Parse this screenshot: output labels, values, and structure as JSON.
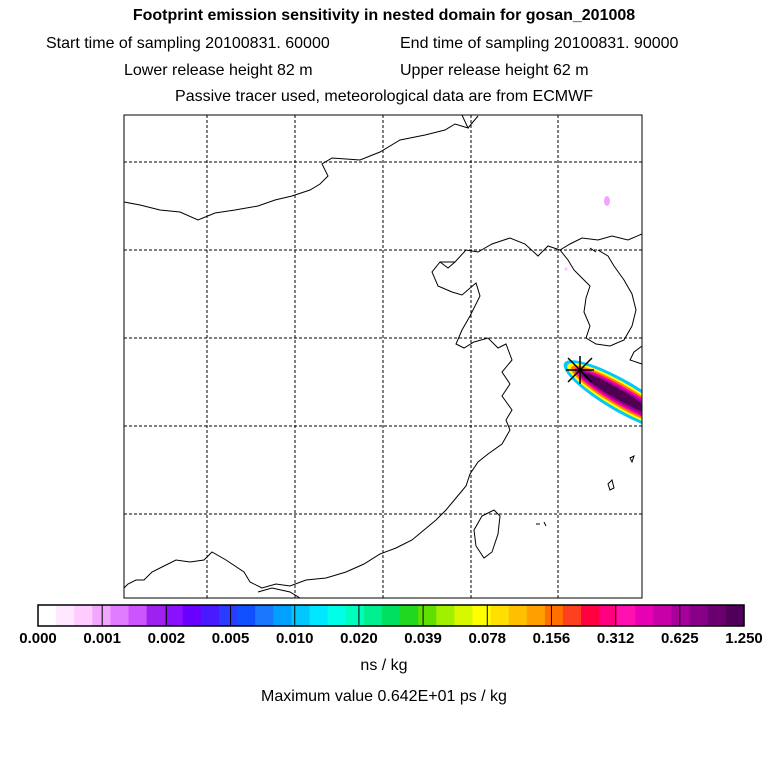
{
  "header": {
    "title": "Footprint emission sensitivity in nested domain for gosan_201008",
    "start_time": "Start time of sampling 20100831. 60000",
    "end_time": "End time of sampling 20100831. 90000",
    "lower_release": "Lower release height   82 m",
    "upper_release": "Upper release height   62 m",
    "tracer_note": "Passive tracer used, meteorological data are from ECMWF"
  },
  "colorbar": {
    "tick_labels": [
      "0.000",
      "0.001",
      "0.002",
      "0.005",
      "0.010",
      "0.020",
      "0.039",
      "0.078",
      "0.156",
      "0.312",
      "0.625",
      "1.250"
    ],
    "colors": [
      "#ffffff",
      "#ffe8ff",
      "#ffccff",
      "#f3a6ff",
      "#e07cff",
      "#cc55ff",
      "#a020f0",
      "#8a10ff",
      "#6a00ff",
      "#4a1aff",
      "#2a3cff",
      "#1050ff",
      "#1a78ff",
      "#00a0ff",
      "#00c8ff",
      "#00e8ff",
      "#00ffe6",
      "#00ffbe",
      "#00f090",
      "#00e060",
      "#20d820",
      "#60e000",
      "#a0f000",
      "#d8f800",
      "#ffff00",
      "#ffe000",
      "#ffc000",
      "#ffa000",
      "#ff7000",
      "#ff4020",
      "#ff0040",
      "#ff0080",
      "#ff10b0",
      "#e800b4",
      "#c800a8",
      "#a8009a",
      "#880088",
      "#6a0070",
      "#50005a"
    ],
    "units": "ns / kg",
    "max_value": "Maximum value  0.642E+01 ps / kg"
  },
  "map": {
    "release_site": "gosan",
    "plume_colors": {
      "outer": "#00c8ff",
      "yellow": "#ffff00",
      "orange": "#ff8000",
      "magenta": "#ff00a0",
      "purple": "#a000a0",
      "core": "#500050"
    }
  }
}
